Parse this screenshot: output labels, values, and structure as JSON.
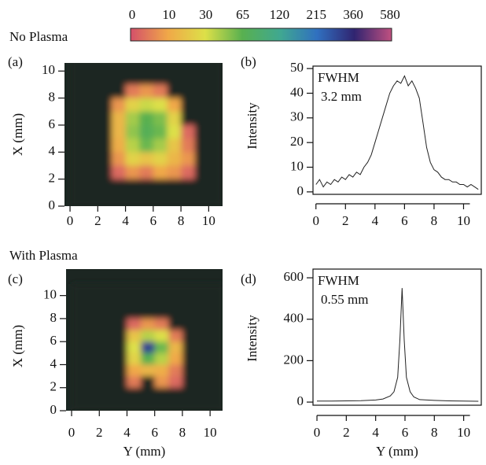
{
  "row_labels": [
    "No Plasma",
    "With Plasma"
  ],
  "chart_data": [
    {
      "type": "colorbar",
      "ticks": [
        0,
        10,
        30,
        65,
        120,
        215,
        360,
        580
      ],
      "colors": [
        "#d4506a",
        "#f0a848",
        "#dde048",
        "#58b050",
        "#40a890",
        "#3070c0",
        "#302470",
        "#c05080"
      ]
    },
    {
      "type": "heatmap",
      "panel": "(a)",
      "ylabel": "X (mm)",
      "background": "#1c2622",
      "xlim": [
        -0.4,
        11
      ],
      "ylim": [
        0,
        10.6
      ],
      "xticks": [
        0,
        2,
        4,
        6,
        8,
        10
      ],
      "yticks": [
        0,
        2,
        4,
        6,
        8,
        10
      ],
      "x": [
        0.5,
        1.5,
        2.5,
        3.5,
        4.5,
        5.5,
        6.5,
        7.5,
        8.5,
        9.5,
        10.5
      ],
      "y": [
        10.5,
        9.5,
        8.5,
        7.5,
        6.5,
        5.5,
        4.5,
        3.5,
        2.5,
        1.5,
        0.5
      ],
      "z": [
        [
          0,
          0,
          0,
          0,
          0,
          0,
          0,
          0,
          0,
          0,
          0
        ],
        [
          0,
          0,
          0,
          0,
          0,
          0,
          0,
          0,
          0,
          0,
          0
        ],
        [
          0,
          0,
          0,
          0,
          5,
          8,
          5,
          0,
          0,
          0,
          0
        ],
        [
          0,
          0,
          0,
          8,
          25,
          35,
          30,
          10,
          0,
          0,
          0
        ],
        [
          0,
          0,
          0,
          15,
          45,
          65,
          55,
          25,
          0,
          0,
          0
        ],
        [
          0,
          0,
          0,
          15,
          50,
          70,
          60,
          30,
          3,
          0,
          0
        ],
        [
          0,
          0,
          0,
          12,
          40,
          60,
          45,
          20,
          5,
          0,
          0
        ],
        [
          0,
          0,
          0,
          8,
          25,
          20,
          25,
          15,
          8,
          0,
          0
        ],
        [
          0,
          0,
          0,
          3,
          8,
          5,
          10,
          8,
          3,
          0,
          0
        ],
        [
          0,
          0,
          0,
          0,
          0,
          0,
          0,
          0,
          0,
          0,
          0
        ],
        [
          0,
          0,
          0,
          0,
          0,
          0,
          0,
          0,
          0,
          0,
          0
        ]
      ]
    },
    {
      "type": "line",
      "panel": "(b)",
      "ylabel": "Intensity",
      "annotation": [
        "FWHM",
        "3.2 mm"
      ],
      "color": "#222222",
      "xlim": [
        -0.2,
        11.2
      ],
      "ylim": [
        -1,
        51
      ],
      "xticks": [
        0,
        2,
        4,
        6,
        8,
        10
      ],
      "yticks": [
        0,
        10,
        20,
        30,
        40,
        50
      ],
      "x": [
        0,
        0.25,
        0.5,
        0.75,
        1,
        1.25,
        1.5,
        1.75,
        2,
        2.25,
        2.5,
        2.75,
        3,
        3.25,
        3.5,
        3.75,
        4,
        4.25,
        4.5,
        4.75,
        5,
        5.25,
        5.5,
        5.75,
        6,
        6.25,
        6.5,
        6.75,
        7,
        7.25,
        7.5,
        7.75,
        8,
        8.25,
        8.5,
        8.75,
        9,
        9.25,
        9.5,
        9.75,
        10,
        10.25,
        10.5,
        10.75,
        11
      ],
      "values": [
        3,
        5,
        2,
        4,
        3,
        5,
        4,
        6,
        5,
        7,
        6,
        8,
        7,
        10,
        12,
        15,
        20,
        25,
        30,
        35,
        40,
        43,
        45,
        44,
        47,
        43,
        45,
        42,
        38,
        28,
        18,
        12,
        9,
        8,
        6,
        5,
        5,
        4,
        4,
        3,
        3,
        2,
        3,
        2,
        1
      ]
    },
    {
      "type": "heatmap",
      "panel": "(c)",
      "ylabel": "X (mm)",
      "xlabel": "Y (mm)",
      "background": "#1c2622",
      "xlim": [
        -0.4,
        10.9
      ],
      "ylim": [
        0,
        12.3
      ],
      "xticks": [
        0,
        2,
        4,
        6,
        8,
        10
      ],
      "yticks": [
        0,
        2,
        4,
        6,
        8,
        10
      ],
      "x": [
        0.5,
        1.5,
        2.5,
        3.5,
        4.5,
        5.5,
        6.5,
        7.5,
        8.5,
        9.5,
        10.5
      ],
      "y": [
        10.5,
        9.5,
        8.5,
        7.5,
        6.5,
        5.5,
        4.5,
        3.5,
        2.5,
        1.5,
        0.5
      ],
      "z": [
        [
          0,
          0,
          0,
          0,
          0,
          0,
          0,
          0,
          0,
          0,
          0
        ],
        [
          0,
          0,
          0,
          0,
          0,
          0,
          0,
          0,
          0,
          0,
          0
        ],
        [
          0,
          0,
          0,
          0,
          0,
          0,
          0,
          0,
          0,
          0,
          0
        ],
        [
          0,
          0,
          0,
          0,
          3,
          8,
          5,
          0,
          0,
          0,
          0
        ],
        [
          0,
          0,
          0,
          0,
          20,
          40,
          30,
          5,
          0,
          0,
          0
        ],
        [
          0,
          0,
          0,
          0,
          30,
          300,
          60,
          15,
          0,
          0,
          0
        ],
        [
          0,
          0,
          0,
          0,
          25,
          65,
          40,
          10,
          0,
          0,
          0
        ],
        [
          0,
          0,
          0,
          0,
          10,
          15,
          12,
          5,
          0,
          0,
          0
        ],
        [
          0,
          0,
          0,
          0,
          5,
          0,
          8,
          3,
          0,
          0,
          0
        ],
        [
          0,
          0,
          0,
          0,
          0,
          0,
          0,
          0,
          0,
          0,
          0
        ],
        [
          0,
          0,
          0,
          0,
          0,
          0,
          0,
          0,
          0,
          0,
          0
        ]
      ]
    },
    {
      "type": "line",
      "panel": "(d)",
      "ylabel": "Intensity",
      "xlabel": "Y (mm)",
      "annotation": [
        "FWHM",
        "0.55 mm"
      ],
      "color": "#222222",
      "xlim": [
        -0.27,
        11.2
      ],
      "ylim": [
        -15,
        642
      ],
      "xticks": [
        0,
        2,
        4,
        6,
        8,
        10
      ],
      "yticks": [
        0,
        200,
        400,
        600
      ],
      "x": [
        0,
        1,
        2,
        3,
        4,
        4.5,
        5,
        5.25,
        5.5,
        5.65,
        5.8,
        5.95,
        6.1,
        6.35,
        6.6,
        7,
        8,
        9,
        10,
        11
      ],
      "values": [
        5,
        5,
        6,
        7,
        10,
        15,
        30,
        50,
        120,
        300,
        550,
        300,
        120,
        50,
        25,
        12,
        8,
        6,
        5,
        4
      ]
    }
  ]
}
